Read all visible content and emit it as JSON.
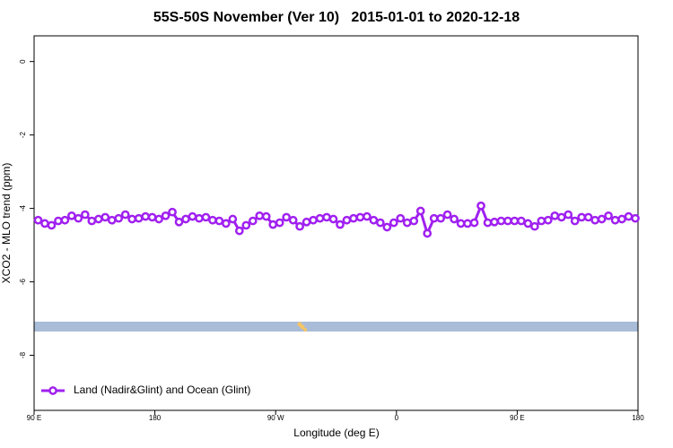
{
  "chart_data": {
    "type": "line",
    "title": "55S-50S November (Ver 10)   2015-01-01 to 2020-12-18",
    "xlabel": "Longitude (deg E)",
    "ylabel": "XCO2 - MLO trend (ppm)",
    "xlim": [
      90,
      540
    ],
    "ylim": [
      -9.5,
      0.7
    ],
    "xticks": [
      {
        "value": 90,
        "label": "90 E"
      },
      180,
      {
        "value": 270,
        "label": "90 W"
      },
      {
        "value": 360,
        "label": "0"
      },
      {
        "value": 450,
        "label": "90 E"
      },
      {
        "value": 540,
        "label": "180"
      }
    ],
    "yticks": [
      0,
      -2,
      -4,
      -6,
      -8
    ],
    "legend": "bottom-left",
    "x": [
      93,
      98,
      103,
      108,
      113,
      118,
      123,
      128,
      133,
      138,
      143,
      148,
      153,
      158,
      163,
      168,
      173,
      178,
      183,
      188,
      193,
      198,
      203,
      208,
      213,
      218,
      223,
      228,
      233,
      238,
      243,
      248,
      253,
      258,
      263,
      268,
      273,
      278,
      283,
      288,
      293,
      298,
      303,
      308,
      313,
      318,
      323,
      328,
      333,
      338,
      343,
      348,
      353,
      358,
      363,
      368,
      373,
      378,
      383,
      388,
      393,
      398,
      403,
      408,
      413,
      418,
      423,
      428,
      433,
      438,
      443,
      448,
      453,
      458,
      463,
      468,
      473,
      478,
      483,
      488,
      493,
      498,
      503,
      508,
      513,
      518,
      523,
      528,
      533,
      538
    ],
    "series": [
      {
        "name": "Land (Nadir&Glint) and Ocean (Glint)",
        "color": "#a020f0",
        "values": [
          -4.32,
          -4.41,
          -4.46,
          -4.34,
          -4.32,
          -4.2,
          -4.27,
          -4.17,
          -4.34,
          -4.29,
          -4.24,
          -4.32,
          -4.27,
          -4.17,
          -4.29,
          -4.27,
          -4.22,
          -4.24,
          -4.29,
          -4.2,
          -4.1,
          -4.37,
          -4.29,
          -4.22,
          -4.27,
          -4.24,
          -4.32,
          -4.34,
          -4.41,
          -4.29,
          -4.61,
          -4.46,
          -4.34,
          -4.2,
          -4.22,
          -4.44,
          -4.39,
          -4.24,
          -4.32,
          -4.49,
          -4.37,
          -4.32,
          -4.27,
          -4.24,
          -4.29,
          -4.44,
          -4.32,
          -4.27,
          -4.24,
          -4.22,
          -4.32,
          -4.39,
          -4.51,
          -4.39,
          -4.27,
          -4.39,
          -4.34,
          -4.07,
          -4.68,
          -4.27,
          -4.27,
          -4.17,
          -4.29,
          -4.41,
          -4.41,
          -4.39,
          -3.93,
          -4.39,
          -4.37,
          -4.34,
          -4.34,
          -4.34,
          -4.34,
          -4.41,
          -4.49,
          -4.34,
          -4.32,
          -4.2,
          -4.24,
          -4.17,
          -4.34,
          -4.24,
          -4.24,
          -4.32,
          -4.29,
          -4.2,
          -4.32,
          -4.29,
          -4.22,
          -4.27
        ]
      }
    ]
  }
}
